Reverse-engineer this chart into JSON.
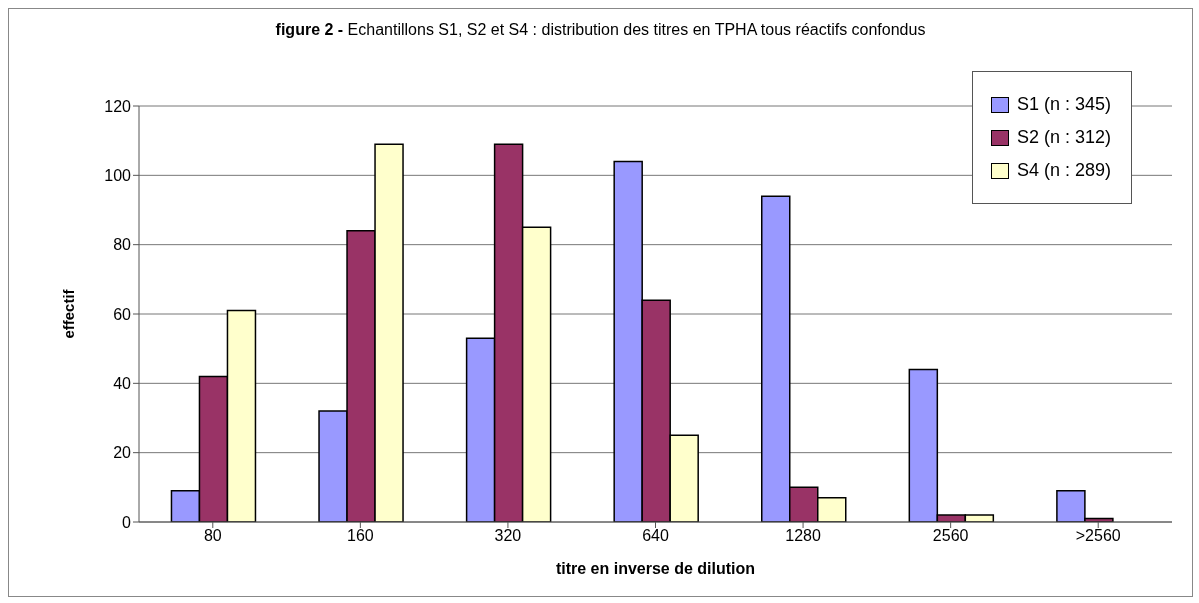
{
  "chart_data": {
    "type": "bar",
    "title": "figure 2 -",
    "subtitle": "Echantillons S1, S2 et S4 : distribution des titres en TPHA tous réactifs confondus",
    "xlabel": "titre en inverse de dilution",
    "ylabel": "effectif",
    "categories": [
      "80",
      "160",
      "320",
      "640",
      "1280",
      "2560",
      ">2560"
    ],
    "series": [
      {
        "name": "S1 (n : 345)",
        "color": "#9999ff",
        "values": [
          9,
          32,
          53,
          104,
          94,
          44,
          9
        ]
      },
      {
        "name": "S2 (n : 312)",
        "color": "#993366",
        "values": [
          42,
          84,
          109,
          64,
          10,
          2,
          1
        ]
      },
      {
        "name": "S4 (n : 289)",
        "color": "#ffffcc",
        "values": [
          61,
          109,
          85,
          25,
          7,
          2,
          0
        ]
      }
    ],
    "ylim": [
      0,
      120
    ],
    "yticks": [
      0,
      20,
      40,
      60,
      80,
      100,
      120
    ],
    "grid": "y",
    "legend": "top right"
  }
}
